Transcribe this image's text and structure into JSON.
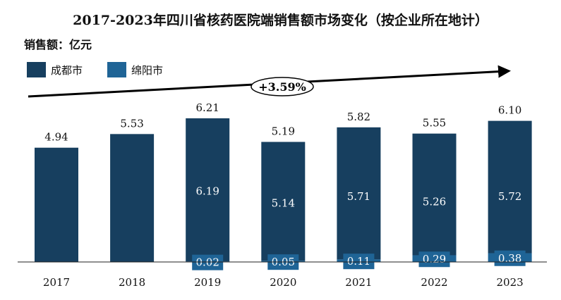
{
  "chart_data": {
    "type": "bar",
    "stacked": true,
    "title": "2017-2023年四川省核药医院端销售额市场变化（按企业所在地计）",
    "ylabel": "销售额：亿元",
    "categories": [
      "2017",
      "2018",
      "2019",
      "2020",
      "2021",
      "2022",
      "2023"
    ],
    "series": [
      {
        "name": "成都市",
        "color": "#173F5F",
        "values": [
          4.94,
          5.53,
          6.19,
          5.14,
          5.71,
          5.26,
          5.72
        ]
      },
      {
        "name": "绵阳市",
        "color": "#1F6496",
        "values": [
          null,
          null,
          0.02,
          0.05,
          0.11,
          0.29,
          0.38
        ]
      }
    ],
    "totals": [
      "4.94",
      "5.53",
      "6.21",
      "5.19",
      "5.82",
      "5.55",
      "6.10"
    ],
    "series_labels": [
      [
        null,
        null,
        "6.19",
        "5.14",
        "5.71",
        "5.26",
        "5.72"
      ],
      [
        null,
        null,
        "0.02",
        "0.05",
        "0.11",
        "0.29",
        "0.38"
      ]
    ],
    "annotation": "+3.59%",
    "legend_position": "top-left",
    "grid": false,
    "ylim": [
      0,
      6.8
    ]
  }
}
